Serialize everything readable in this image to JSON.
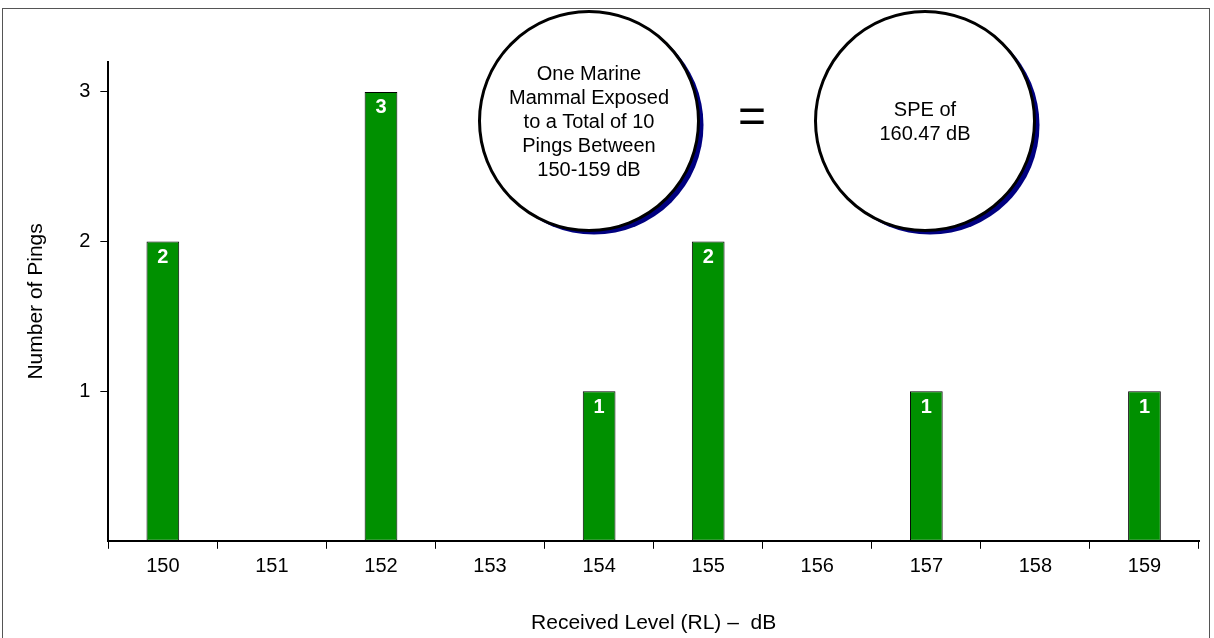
{
  "chart_data": {
    "type": "bar",
    "xlabel": "Received Level (RL) –  dB",
    "ylabel": "Number of Pings",
    "categories": [
      "150",
      "151",
      "152",
      "153",
      "154",
      "155",
      "156",
      "157",
      "158",
      "159"
    ],
    "values": [
      2,
      0,
      3,
      0,
      1,
      2,
      0,
      1,
      0,
      1
    ],
    "value_labels": [
      "2",
      null,
      "3",
      null,
      "1",
      "2",
      null,
      "1",
      null,
      "1"
    ],
    "color": "#009000",
    "ylim": [
      0,
      3.2
    ],
    "yticks": [
      1,
      2,
      3
    ],
    "grid": false,
    "legend": false,
    "annotations": [
      "One Marine Mammal Exposed to a Total of 10 Pings Between 150-159 dB",
      "=",
      "SPE of 160.47 dB"
    ]
  }
}
